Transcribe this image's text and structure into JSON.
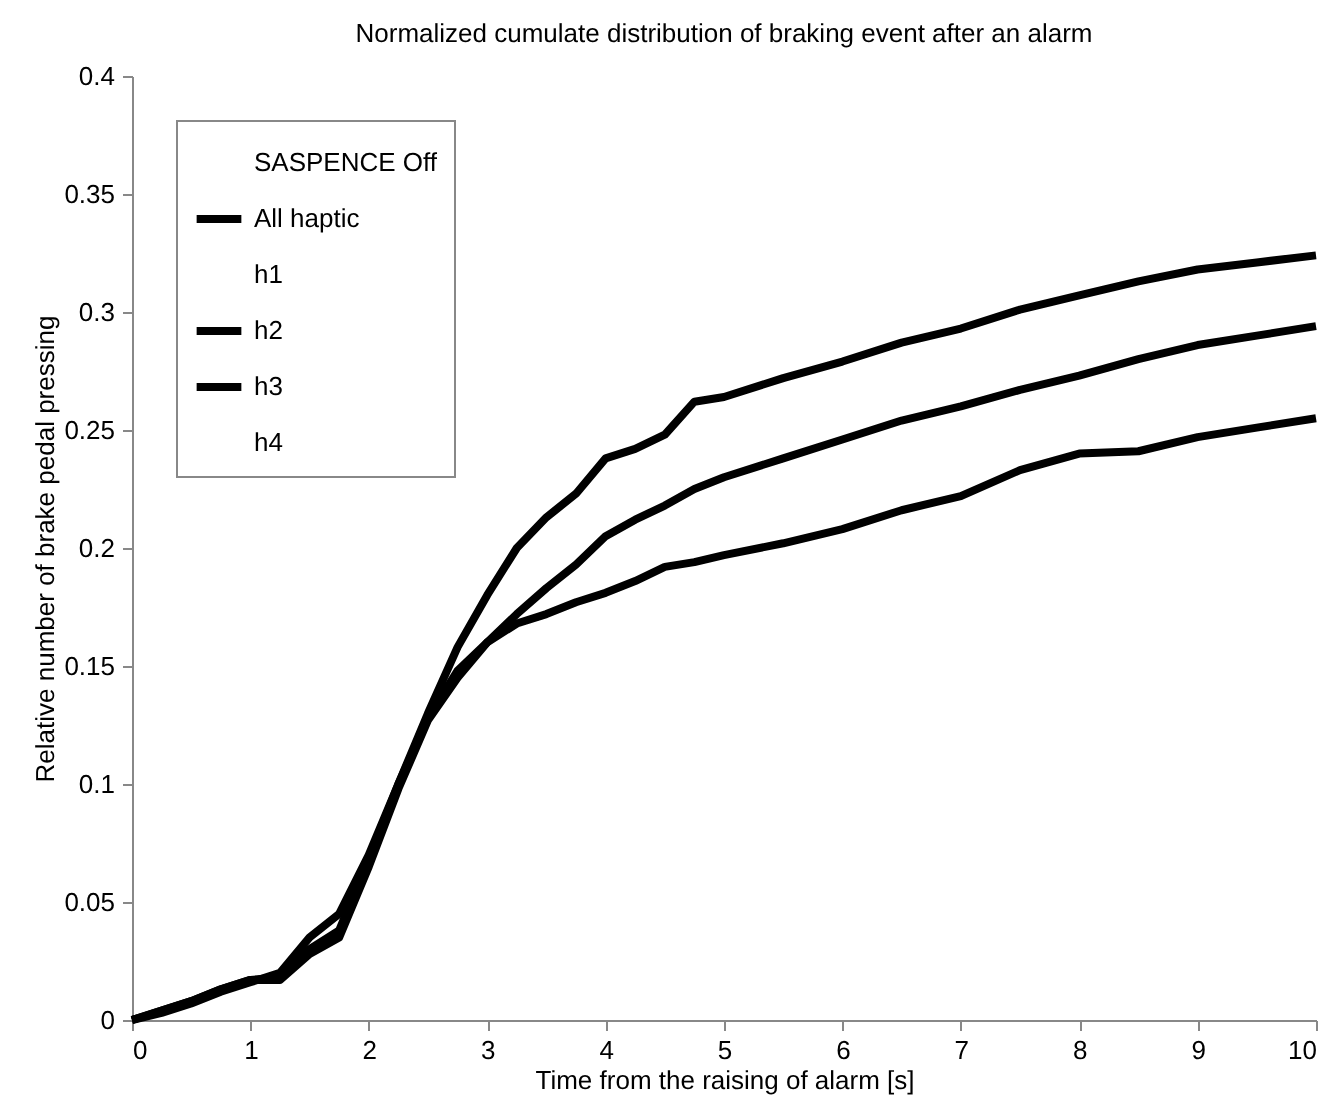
{
  "chart_data": {
    "type": "line",
    "title": "Normalized cumulate distribution of braking event after an alarm",
    "xlabel": "Time from the raising of alarm [s]",
    "ylabel": "Relative number of brake pedal pressing",
    "x": [
      0,
      0.25,
      0.5,
      0.75,
      1,
      1.25,
      1.5,
      1.75,
      2,
      2.25,
      2.5,
      2.75,
      3,
      3.25,
      3.5,
      3.75,
      4,
      4.25,
      4.5,
      4.75,
      5,
      5.5,
      6,
      6.5,
      7,
      7.5,
      8,
      8.5,
      9,
      9.5,
      10
    ],
    "series": [
      {
        "name": "SASPENCE Off",
        "values": [
          null,
          null,
          null,
          null,
          null,
          null,
          null,
          null,
          null,
          null,
          null,
          null,
          null,
          null,
          null,
          null,
          null,
          null,
          null,
          null,
          null,
          null,
          null,
          null,
          null,
          null,
          null,
          null,
          null,
          null,
          null
        ]
      },
      {
        "name": "All haptic",
        "color": "#000000",
        "values": [
          0,
          0.003,
          0.007,
          0.012,
          0.016,
          0.02,
          0.035,
          0.045,
          0.07,
          0.1,
          0.13,
          0.158,
          0.18,
          0.2,
          0.213,
          0.223,
          0.238,
          0.242,
          0.248,
          0.262,
          0.264,
          0.272,
          0.279,
          0.287,
          0.293,
          0.301,
          0.307,
          0.313,
          0.318,
          0.321,
          0.324
        ]
      },
      {
        "name": "h1",
        "values": [
          null,
          null,
          null,
          null,
          null,
          null,
          null,
          null,
          null,
          null,
          null,
          null,
          null,
          null,
          null,
          null,
          null,
          null,
          null,
          null,
          null,
          null,
          null,
          null,
          null,
          null,
          null,
          null,
          null,
          null,
          null
        ]
      },
      {
        "name": "h2",
        "color": "#000000",
        "values": [
          0,
          0.004,
          0.008,
          0.013,
          0.017,
          0.018,
          0.03,
          0.038,
          0.068,
          0.1,
          0.128,
          0.148,
          0.16,
          0.172,
          0.183,
          0.193,
          0.205,
          0.212,
          0.218,
          0.225,
          0.23,
          0.238,
          0.246,
          0.254,
          0.26,
          0.267,
          0.273,
          0.28,
          0.286,
          0.29,
          0.294
        ]
      },
      {
        "name": "h3",
        "color": "#000000",
        "values": [
          0,
          0.004,
          0.008,
          0.013,
          0.017,
          0.017,
          0.028,
          0.035,
          0.065,
          0.098,
          0.127,
          0.145,
          0.16,
          0.168,
          0.172,
          0.177,
          0.181,
          0.186,
          0.192,
          0.194,
          0.197,
          0.202,
          0.208,
          0.216,
          0.222,
          0.233,
          0.24,
          0.241,
          0.247,
          0.251,
          0.255
        ]
      },
      {
        "name": "h4",
        "values": [
          null,
          null,
          null,
          null,
          null,
          null,
          null,
          null,
          null,
          null,
          null,
          null,
          null,
          null,
          null,
          null,
          null,
          null,
          null,
          null,
          null,
          null,
          null,
          null,
          null,
          null,
          null,
          null,
          null,
          null,
          null
        ]
      }
    ],
    "xlim": [
      0,
      10
    ],
    "xticks": [
      0,
      1,
      2,
      3,
      4,
      5,
      6,
      7,
      8,
      9,
      10
    ],
    "ylim": [
      0,
      0.4
    ],
    "yticks": [
      0,
      0.05,
      0.1,
      0.15,
      0.2,
      0.25,
      0.3,
      0.35,
      0.4
    ],
    "grid": false,
    "legend": "top left",
    "marker": "none",
    "line_style": "solid"
  }
}
